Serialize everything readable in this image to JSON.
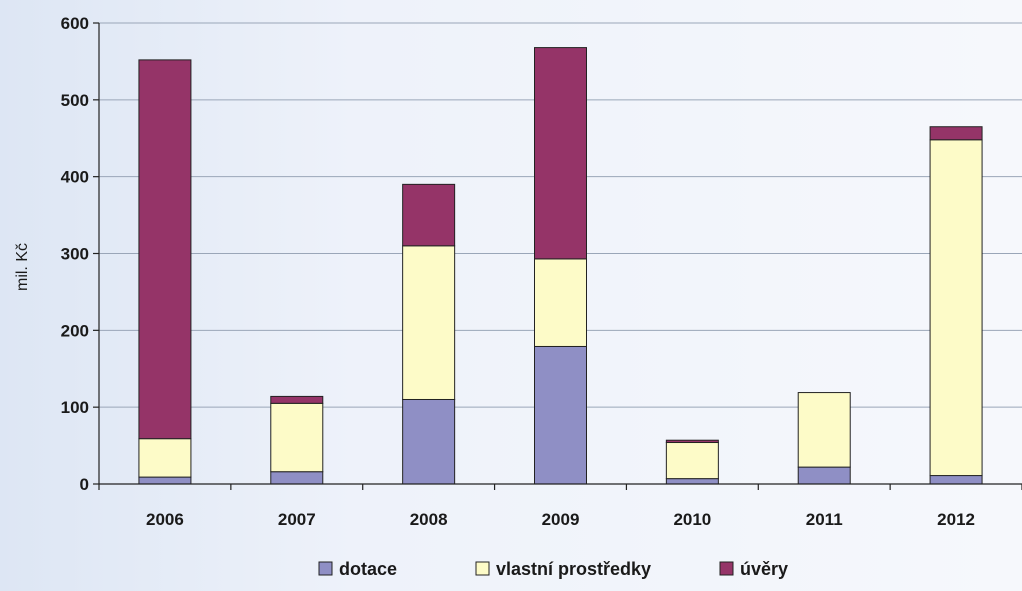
{
  "chart_data": {
    "type": "bar",
    "stacked": true,
    "categories": [
      "2006",
      "2007",
      "2008",
      "2009",
      "2010",
      "2011",
      "2012"
    ],
    "series": [
      {
        "name": "dotace",
        "color": "#8f8fc5",
        "values": [
          9,
          16,
          110,
          179,
          7,
          22,
          11
        ]
      },
      {
        "name": "vlastní prostředky",
        "color": "#fdfbc8",
        "values": [
          50,
          89,
          200,
          114,
          47,
          97,
          437
        ]
      },
      {
        "name": "úvěry",
        "color": "#953468",
        "values": [
          493,
          9,
          80,
          275,
          3,
          0,
          17
        ]
      }
    ],
    "title": "",
    "xlabel": "",
    "ylabel": "mil. Kč",
    "ylim": [
      0,
      600
    ],
    "yticks": [
      "0",
      "100",
      "200",
      "300",
      "400",
      "500",
      "600"
    ],
    "grid": true,
    "legend": "bottom"
  }
}
